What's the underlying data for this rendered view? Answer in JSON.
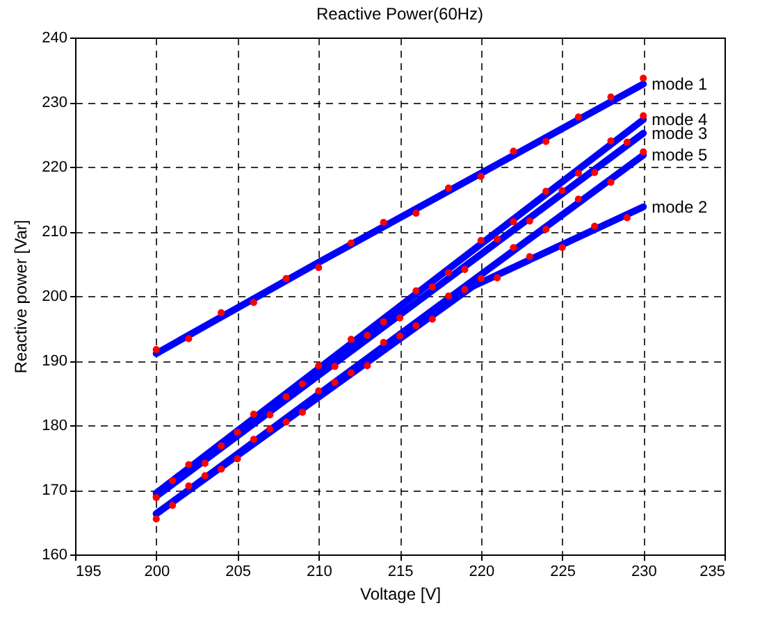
{
  "chart_data": {
    "type": "scatter",
    "title": "Reactive Power(60Hz)",
    "xlabel": "Voltage [V]",
    "ylabel": "Reactive power [Var]",
    "xlim": [
      195,
      235
    ],
    "xticks": [
      195,
      200,
      205,
      210,
      215,
      220,
      225,
      230,
      235
    ],
    "ylim": [
      160,
      240
    ],
    "yticks": [
      160,
      170,
      180,
      190,
      200,
      210,
      220,
      230,
      240
    ],
    "grid": true,
    "legend": false,
    "series": [
      {
        "color": "#ff0000",
        "x": [
          200,
          202,
          204,
          206,
          208,
          210,
          212,
          214,
          216,
          218,
          220,
          222,
          224,
          226,
          228,
          230
        ],
        "values": [
          191.7,
          193.4,
          197.4,
          199.0,
          202.7,
          204.4,
          208.2,
          211.4,
          212.8,
          216.7,
          218.5,
          222.4,
          223.9,
          227.7,
          230.8,
          233.7
        ]
      },
      {
        "color": "#ff0000",
        "x": [
          200,
          202,
          204,
          206,
          208,
          210,
          212,
          214,
          216,
          218,
          220,
          222,
          224,
          226,
          228,
          230
        ],
        "values": [
          168.8,
          173.9,
          176.8,
          181.7,
          184.4,
          189.2,
          193.3,
          196.0,
          200.8,
          203.6,
          208.6,
          211.5,
          216.2,
          219.0,
          224.0,
          227.9
        ]
      },
      {
        "color": "#ff0000",
        "x": [
          201,
          203,
          205,
          207,
          209,
          211,
          213,
          215,
          217,
          219,
          221,
          223,
          225,
          227,
          229
        ],
        "values": [
          171.4,
          174.1,
          178.9,
          181.6,
          186.4,
          189.1,
          193.9,
          196.6,
          201.4,
          204.1,
          208.8,
          211.6,
          216.3,
          219.1,
          223.8
        ]
      },
      {
        "color": "#ff0000",
        "x": [
          200,
          202,
          204,
          206,
          208,
          210,
          212,
          214,
          216,
          218,
          220,
          222,
          224,
          226,
          228,
          230
        ],
        "values": [
          165.5,
          170.6,
          173.2,
          177.8,
          180.5,
          185.3,
          188.1,
          192.8,
          195.4,
          200.0,
          202.7,
          207.5,
          210.3,
          215.0,
          217.6,
          222.3
        ]
      },
      {
        "color": "#ff0000",
        "x": [
          201,
          203,
          205,
          207,
          209,
          211,
          213,
          215,
          217,
          219,
          221,
          223,
          225,
          227,
          229
        ],
        "values": [
          167.6,
          172.2,
          174.8,
          179.4,
          182.0,
          186.6,
          189.2,
          193.8,
          196.4,
          201.0,
          202.8,
          206.1,
          207.5,
          210.8,
          212.1
        ]
      },
      {
        "type": "line",
        "name": "mode 1",
        "color": "#0000ff",
        "x": [
          200,
          210,
          220,
          230
        ],
        "values": [
          191.1,
          205.2,
          219.0,
          232.8
        ]
      },
      {
        "type": "line",
        "name": "mode 4",
        "color": "#0000ff",
        "x": [
          200,
          230
        ],
        "values": [
          169.5,
          227.3
        ]
      },
      {
        "type": "line",
        "name": "mode 3",
        "color": "#0000ff",
        "x": [
          200,
          230
        ],
        "values": [
          169.0,
          225.2
        ]
      },
      {
        "type": "line",
        "name": "mode 5",
        "color": "#0000ff",
        "x": [
          200,
          230
        ],
        "values": [
          166.3,
          221.8
        ]
      },
      {
        "type": "line",
        "name": "mode 2",
        "color": "#0000ff",
        "x": [
          200,
          219.5,
          230
        ],
        "values": [
          166.3,
          201.5,
          213.8
        ]
      }
    ]
  }
}
